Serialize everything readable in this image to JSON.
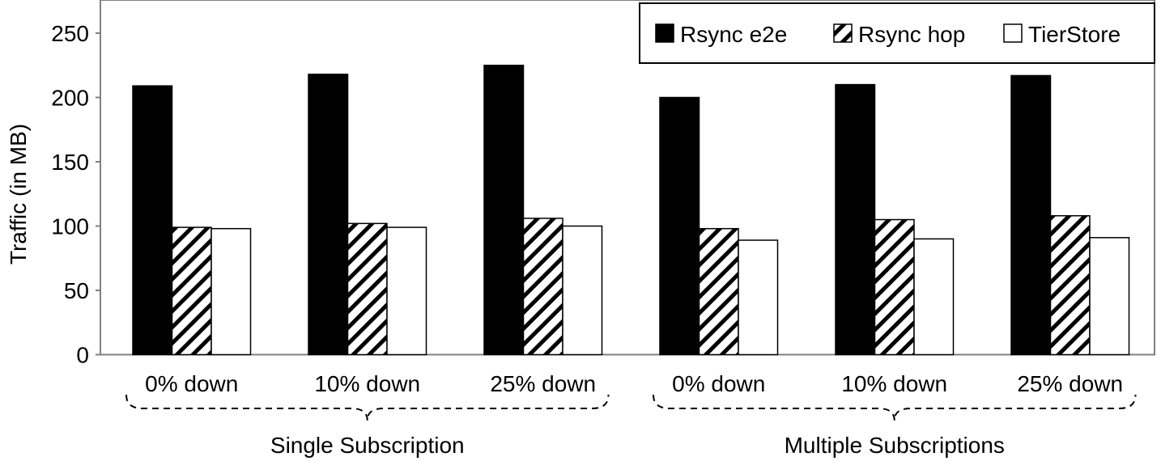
{
  "chart_data": {
    "type": "bar",
    "title": "",
    "xlabel": "",
    "ylabel": "Traffic (in MB)",
    "ylim": [
      0,
      250
    ],
    "yticks": [
      0,
      50,
      100,
      150,
      200,
      250
    ],
    "grid": false,
    "legend_placement": "top-right",
    "categories": [
      "0% down",
      "10% down",
      "25% down",
      "0% down",
      "10% down",
      "25% down"
    ],
    "groups": [
      {
        "label": "Single Subscription",
        "categories": [
          0,
          1,
          2
        ]
      },
      {
        "label": "Multiple Subscriptions",
        "categories": [
          3,
          4,
          5
        ]
      }
    ],
    "series": [
      {
        "name": "Rsync e2e",
        "fill": "solid-black",
        "values": [
          209,
          218,
          225,
          200,
          210,
          217
        ]
      },
      {
        "name": "Rsync hop",
        "fill": "diagonal-hatch",
        "values": [
          99,
          102,
          106,
          98,
          105,
          108
        ]
      },
      {
        "name": "TierStore",
        "fill": "white",
        "values": [
          98,
          99,
          100,
          89,
          90,
          91
        ]
      }
    ],
    "colors": {
      "solid": "#000000",
      "white": "#ffffff",
      "axis": "#808080"
    }
  }
}
